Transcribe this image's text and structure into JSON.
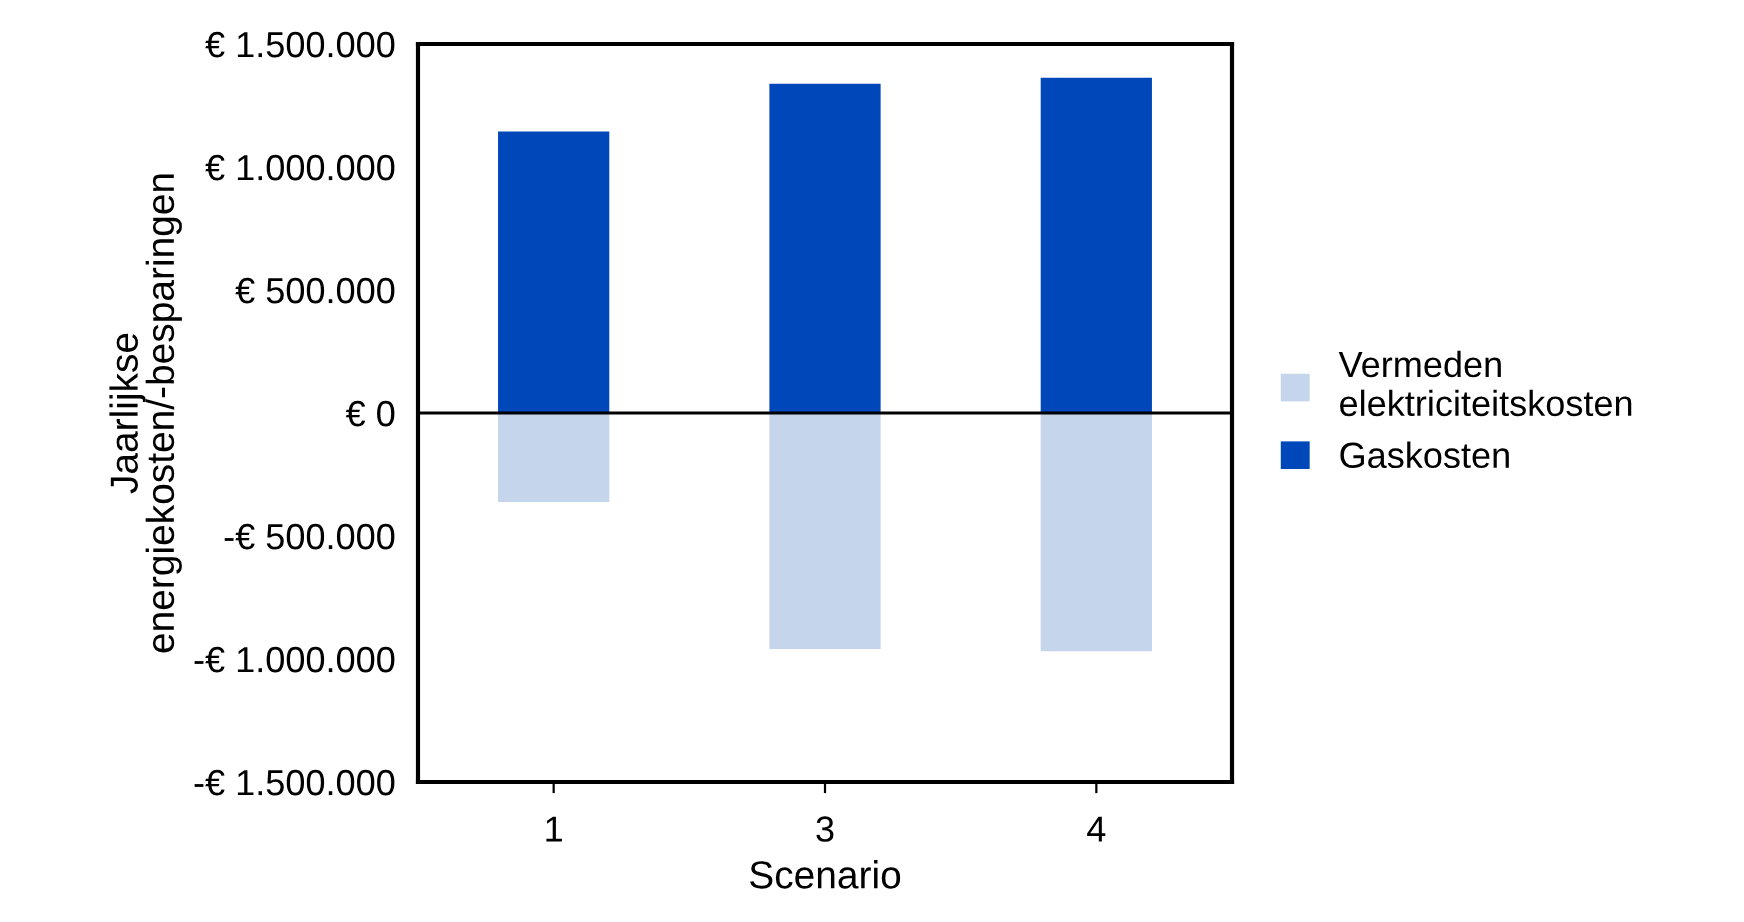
{
  "chart_data": {
    "type": "bar",
    "stacked": true,
    "xlabel": "Scenario",
    "ylabel": "Jaarlijkse\nenergiekosten/-besparingen",
    "categories": [
      "1",
      "3",
      "4"
    ],
    "series": [
      {
        "name": "Vermeden\nelektriciteitskosten",
        "color": "#c5d5eb",
        "values": [
          -362000,
          -959000,
          -969000
        ]
      },
      {
        "name": "Gaskosten",
        "color": "#0048ba",
        "values": [
          1144000,
          1338000,
          1363000
        ]
      }
    ],
    "ylim": [
      -1500000,
      1500000
    ],
    "yticks": [
      {
        "value": -1500000,
        "label": "-€ 1.500.000"
      },
      {
        "value": -1000000,
        "label": "-€ 1.000.000"
      },
      {
        "value": -500000,
        "label": "-€ 500.000"
      },
      {
        "value": 0,
        "label": "€ 0"
      },
      {
        "value": 500000,
        "label": "€ 500.000"
      },
      {
        "value": 1000000,
        "label": "€ 1.000.000"
      },
      {
        "value": 1500000,
        "label": "€ 1.500.000"
      }
    ],
    "ref_lines": [
      {
        "axis": "y",
        "value": 0,
        "color": "#000000"
      }
    ],
    "grid": false,
    "legend": "right"
  }
}
